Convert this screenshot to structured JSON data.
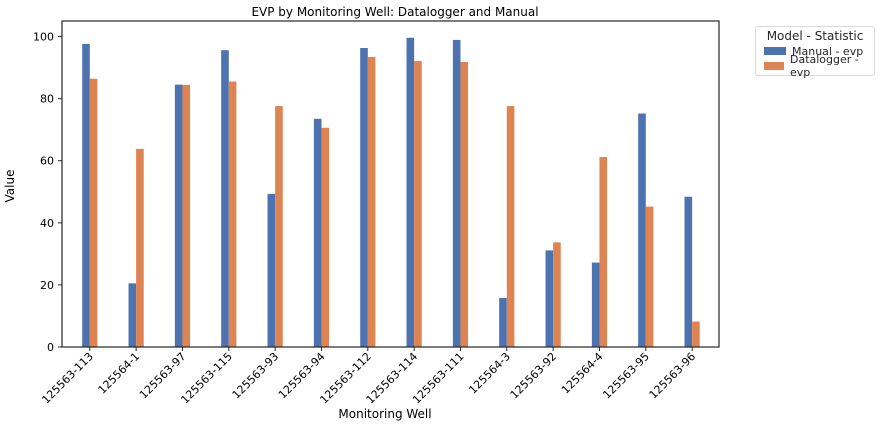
{
  "chart_data": {
    "type": "bar",
    "title": "EVP by Monitoring Well: Datalogger and Manual",
    "xlabel": "Monitoring Well",
    "ylabel": "Value",
    "ylim": [
      0,
      105
    ],
    "yticks": [
      0,
      20,
      40,
      60,
      80,
      100
    ],
    "grid": false,
    "legend_title": "Model - Statistic",
    "legend_placement": "outside-top-right",
    "categories": [
      "125563-113",
      "125564-1",
      "125563-97",
      "125563-115",
      "125563-93",
      "125563-94",
      "125563-112",
      "125563-114",
      "125563-111",
      "125564-3",
      "125563-92",
      "125564-4",
      "125563-95",
      "125563-96"
    ],
    "series": [
      {
        "name": "Manual - evp",
        "color": "#4c72b0",
        "values": [
          97.6,
          20.5,
          84.5,
          95.6,
          49.3,
          73.5,
          96.3,
          99.6,
          98.9,
          15.8,
          31.1,
          27.2,
          75.2,
          48.4
        ]
      },
      {
        "name": "Datalogger - evp",
        "color": "#dd8452",
        "values": [
          86.4,
          63.8,
          84.4,
          85.5,
          77.6,
          70.6,
          93.4,
          92.1,
          91.8,
          77.6,
          33.7,
          61.2,
          45.2,
          8.2
        ]
      }
    ]
  }
}
